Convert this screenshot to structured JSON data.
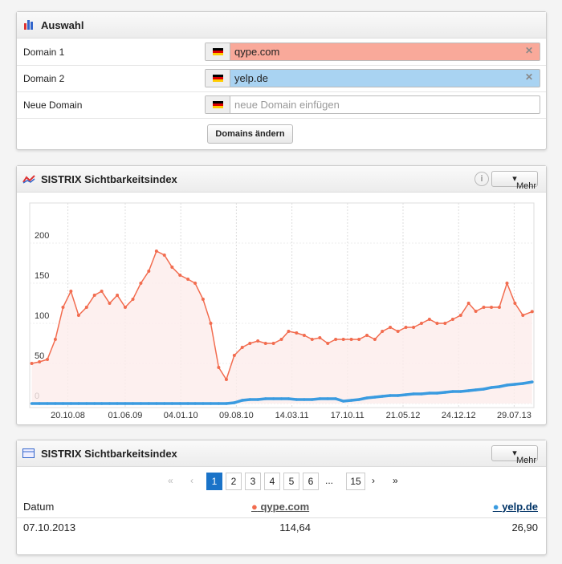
{
  "selection": {
    "title": "Auswahl",
    "rows": [
      {
        "label": "Domain 1",
        "value": "qype.com"
      },
      {
        "label": "Domain 2",
        "value": "yelp.de"
      },
      {
        "label": "Neue Domain",
        "placeholder": "neue Domain einfügen"
      }
    ],
    "button": "Domains ändern"
  },
  "chart_panel": {
    "more": "Mehr"
  },
  "chart_data": {
    "type": "line",
    "title": "SISTRIX Sichtbarkeitsindex",
    "x": [
      "01.06.08",
      "01.07.08",
      "01.08.08",
      "01.09.08",
      "01.10.08",
      "01.11.08",
      "01.12.08",
      "01.01.09",
      "01.02.09",
      "01.03.09",
      "01.04.09",
      "01.05.09",
      "01.06.09",
      "01.07.09",
      "01.08.09",
      "01.09.09",
      "01.10.09",
      "01.11.09",
      "01.12.09",
      "01.01.10",
      "01.02.10",
      "01.03.10",
      "01.04.10",
      "01.05.10",
      "01.06.10",
      "01.07.10",
      "01.08.10",
      "01.09.10",
      "01.10.10",
      "01.11.10",
      "01.12.10",
      "01.01.11",
      "01.02.11",
      "01.03.11",
      "01.04.11",
      "01.05.11",
      "01.06.11",
      "01.07.11",
      "01.08.11",
      "01.09.11",
      "01.10.11",
      "01.11.11",
      "01.12.11",
      "01.01.12",
      "01.02.12",
      "01.03.12",
      "01.04.12",
      "01.05.12",
      "01.06.12",
      "01.07.12",
      "01.08.12",
      "01.09.12",
      "01.10.12",
      "01.11.12",
      "01.12.12",
      "01.01.13",
      "01.02.13",
      "01.03.13",
      "01.04.13",
      "01.05.13",
      "01.06.13",
      "01.07.13",
      "01.08.13",
      "01.09.13",
      "07.10.13"
    ],
    "series": [
      {
        "name": "qype.com",
        "color": "#f26c4f",
        "fill": "#fdeceb",
        "values": [
          50,
          52,
          55,
          80,
          120,
          140,
          110,
          120,
          135,
          140,
          125,
          135,
          120,
          130,
          150,
          165,
          190,
          185,
          170,
          160,
          155,
          150,
          130,
          100,
          45,
          30,
          60,
          70,
          75,
          78,
          75,
          75,
          80,
          90,
          88,
          85,
          80,
          82,
          75,
          80,
          80,
          80,
          80,
          85,
          80,
          90,
          95,
          90,
          95,
          95,
          100,
          105,
          100,
          100,
          105,
          110,
          125,
          115,
          120,
          120,
          120,
          150,
          125,
          110,
          114.64
        ]
      },
      {
        "name": "yelp.de",
        "color": "#3a9be0",
        "values": [
          0,
          0,
          0,
          0,
          0,
          0,
          0,
          0,
          0,
          0,
          0,
          0,
          0,
          0,
          0,
          0,
          0,
          0,
          0,
          0,
          0,
          0,
          0,
          0,
          0,
          0,
          1,
          4,
          5,
          5,
          6,
          6,
          6,
          6,
          5,
          5,
          5,
          6,
          6,
          6,
          3,
          4,
          5,
          7,
          8,
          9,
          10,
          10,
          11,
          12,
          12,
          13,
          13,
          14,
          15,
          15,
          16,
          17,
          18,
          20,
          21,
          23,
          24,
          25,
          26.9
        ]
      }
    ],
    "xlim": [
      "24.05.08",
      "14.10.13"
    ],
    "xticks": [
      "20.10.08",
      "01.06.09",
      "04.01.10",
      "09.08.10",
      "14.03.11",
      "17.10.11",
      "21.05.12",
      "24.12.12",
      "29.07.13"
    ],
    "ylim": [
      -5,
      250
    ],
    "yticks": [
      0,
      50,
      100,
      150,
      200
    ],
    "grid": true
  },
  "table_panel": {
    "title": "SISTRIX Sichtbarkeitsindex",
    "more": "Mehr",
    "pages": [
      "1",
      "2",
      "3",
      "4",
      "5",
      "6",
      "...",
      "15"
    ],
    "columns": [
      "Datum"
    ],
    "rows": [
      [
        "07.10.2013",
        "114,64",
        "26,90"
      ]
    ]
  }
}
